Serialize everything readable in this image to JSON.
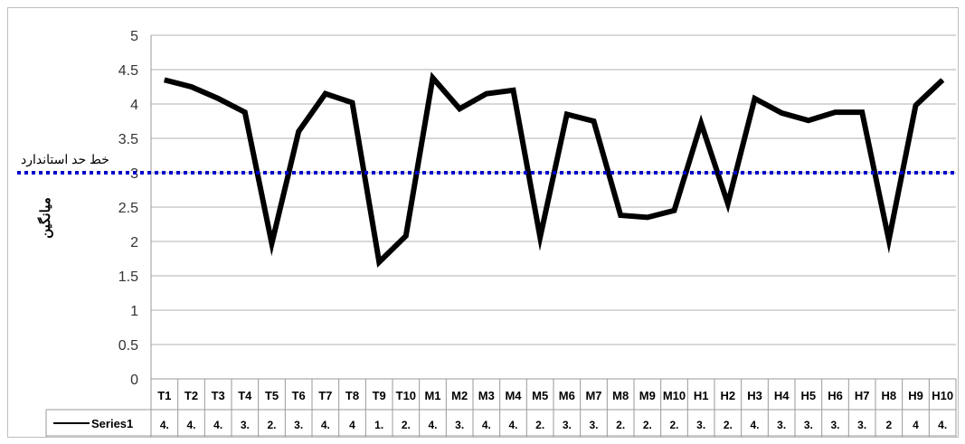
{
  "chart_data": {
    "type": "line",
    "ylabel": "میانگین",
    "ylim": [
      0,
      5
    ],
    "yticks": [
      "0",
      "0.5",
      "1",
      "1.5",
      "2",
      "2.5",
      "3",
      "3.5",
      "4",
      "4.5",
      "5"
    ],
    "grid": true,
    "categories": [
      "T1",
      "T2",
      "T3",
      "T4",
      "T5",
      "T6",
      "T7",
      "T8",
      "T9",
      "T10",
      "M1",
      "M2",
      "M3",
      "M4",
      "M5",
      "M6",
      "M7",
      "M8",
      "M9",
      "M10",
      "H1",
      "H2",
      "H3",
      "H4",
      "H5",
      "H6",
      "H7",
      "H8",
      "H9",
      "H10"
    ],
    "series": [
      {
        "name": "Series1",
        "color": "#000000",
        "values": [
          4.35,
          4.25,
          4.08,
          3.88,
          1.97,
          3.6,
          4.15,
          4.02,
          1.7,
          2.08,
          4.38,
          3.93,
          4.15,
          4.2,
          2.06,
          3.85,
          3.75,
          2.38,
          2.35,
          2.45,
          3.72,
          2.55,
          4.08,
          3.87,
          3.76,
          3.88,
          3.88,
          2.02,
          3.98,
          4.35
        ]
      }
    ],
    "table_values": [
      "4.",
      "4.",
      "4.",
      "3.",
      "2.",
      "3.",
      "4.",
      "4",
      "1.",
      "2.",
      "4.",
      "3.",
      "4.",
      "4.",
      "2.",
      "3.",
      "3.",
      "2.",
      "2.",
      "2.",
      "3.",
      "2.",
      "4.",
      "3.",
      "3.",
      "3.",
      "3.",
      "2",
      "4",
      "4."
    ],
    "reference_line": {
      "label": "خط حد استاندارد",
      "value": 3,
      "color": "#0000cc"
    }
  }
}
